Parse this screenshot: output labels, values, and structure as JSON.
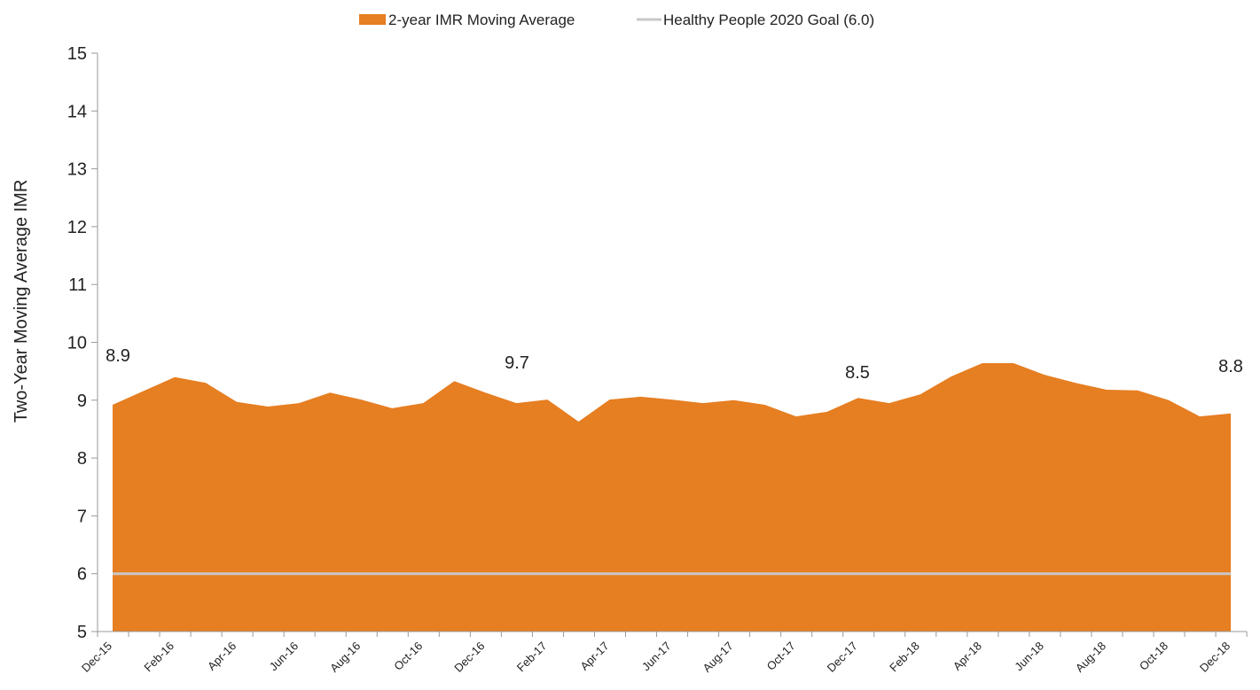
{
  "chart_data": {
    "type": "area",
    "y_label": "Two-Year Moving Average IMR",
    "categories": [
      "Dec-15",
      null,
      "Feb-16",
      null,
      "Apr-16",
      null,
      "Jun-16",
      null,
      "Aug-16",
      null,
      "Oct-16",
      null,
      "Dec-16",
      null,
      "Feb-17",
      null,
      "Apr-17",
      null,
      "Jun-17",
      null,
      "Aug-17",
      null,
      "Oct-17",
      null,
      "Dec-17",
      null,
      "Feb-18",
      null,
      "Apr-18",
      null,
      "Jun-18",
      null,
      "Aug-18",
      null,
      "Oct-18",
      null,
      "Dec-18"
    ],
    "series": [
      {
        "name": "2-year IMR Moving Average",
        "color": "#e67e22",
        "values": [
          8.92,
          9.16,
          9.4,
          9.3,
          8.97,
          8.89,
          8.95,
          9.13,
          9.01,
          8.86,
          8.95,
          9.33,
          9.13,
          8.95,
          9.01,
          8.63,
          9.01,
          9.06,
          9.01,
          8.95,
          9.0,
          8.92,
          8.72,
          8.8,
          9.04,
          8.95,
          9.1,
          9.41,
          9.64,
          9.64,
          9.44,
          9.3,
          9.18,
          9.17,
          9.0,
          8.72,
          8.77
        ]
      }
    ],
    "goal": {
      "name": "Healthy People 2020 Goal (6.0)",
      "value": 6,
      "color": "#c8c8c8"
    },
    "annotations": [
      "8.9",
      "9.7",
      "8.5",
      "8.8"
    ],
    "ylim": [
      5,
      15
    ],
    "yticks": [
      5,
      6,
      7,
      8,
      9,
      10,
      11,
      12,
      13,
      14,
      15
    ]
  }
}
